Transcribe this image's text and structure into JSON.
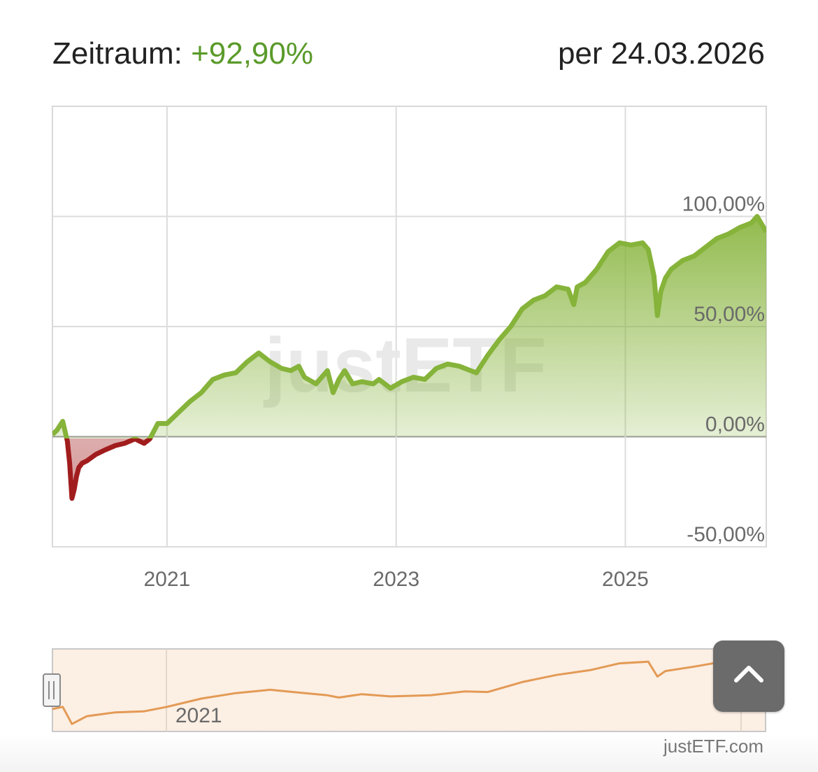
{
  "header": {
    "period_label": "Zeitraum:",
    "period_value": "+92,90%",
    "date_label": "per 24.03.2026"
  },
  "source_label": "justETF.com",
  "watermark_text": "justETF",
  "scroll_top_button": {
    "icon": "chevron-up-icon"
  },
  "colors": {
    "positive_line": "#86b33a",
    "negative_line": "#a11d1d",
    "navigator_line": "#e39a55",
    "navigator_bg": "#fcefe4",
    "grid": "#dcdcdc",
    "zero_line": "#9a9a9a"
  },
  "chart_data": [
    {
      "type": "area",
      "title": "",
      "xlabel": "",
      "ylabel": "",
      "x_unit": "year",
      "xlim": [
        2020.0,
        2026.23
      ],
      "ylim": [
        -50,
        150
      ],
      "y_ticks": [
        -50,
        0,
        50,
        100
      ],
      "y_tick_labels": [
        "-50,00%",
        "0,00%",
        "50,00%",
        "100,00%"
      ],
      "x_ticks": [
        2021,
        2023,
        2025
      ],
      "x_tick_labels": [
        "2021",
        "2023",
        "2025"
      ],
      "grid": true,
      "legend": "none",
      "series": [
        {
          "x": [
            2020.0,
            2020.04,
            2020.09,
            2020.13,
            2020.15,
            2020.17,
            2020.19,
            2020.21,
            2020.23,
            2020.26,
            2020.3,
            2020.38,
            2020.46,
            2020.55,
            2020.63,
            2020.72,
            2020.8,
            2020.85,
            2020.92,
            2021.0,
            2021.1,
            2021.2,
            2021.3,
            2021.4,
            2021.5,
            2021.6,
            2021.7,
            2021.8,
            2021.9,
            2022.0,
            2022.08,
            2022.15,
            2022.2,
            2022.3,
            2022.4,
            2022.45,
            2022.5,
            2022.55,
            2022.62,
            2022.7,
            2022.8,
            2022.85,
            2022.95,
            2023.05,
            2023.15,
            2023.25,
            2023.35,
            2023.45,
            2023.55,
            2023.65,
            2023.7,
            2023.8,
            2023.9,
            2024.0,
            2024.1,
            2024.2,
            2024.3,
            2024.4,
            2024.5,
            2024.55,
            2024.58,
            2024.65,
            2024.75,
            2024.85,
            2024.95,
            2025.05,
            2025.15,
            2025.2,
            2025.25,
            2025.28,
            2025.31,
            2025.35,
            2025.4,
            2025.5,
            2025.6,
            2025.7,
            2025.8,
            2025.9,
            2026.0,
            2026.05,
            2026.1,
            2026.15,
            2026.23
          ],
          "values": [
            1,
            3,
            7,
            -2,
            -12,
            -28,
            -24,
            -18,
            -14,
            -12,
            -11,
            -8,
            -6,
            -4,
            -3,
            -1,
            -3,
            -1,
            6,
            6,
            11,
            16,
            20,
            26,
            28,
            29,
            34,
            38,
            34,
            31,
            30,
            32,
            27,
            24,
            30,
            20,
            26,
            30,
            24,
            25,
            24,
            26,
            22,
            25,
            27,
            26,
            31,
            33,
            32,
            30,
            29,
            37,
            44,
            50,
            58,
            62,
            64,
            68,
            67,
            60,
            68,
            70,
            76,
            84,
            88,
            87,
            88,
            85,
            73,
            55,
            66,
            72,
            76,
            80,
            82,
            86,
            90,
            92,
            95,
            96,
            97,
            100,
            93
          ]
        }
      ]
    },
    {
      "type": "line",
      "title": "",
      "x_ticks": [
        2021
      ],
      "x_tick_labels": [
        "2021"
      ],
      "legend": "none",
      "series": [
        {
          "x": [
            2020.0,
            2020.09,
            2020.17,
            2020.3,
            2020.55,
            2020.8,
            2021.0,
            2021.3,
            2021.6,
            2021.9,
            2022.1,
            2022.4,
            2022.5,
            2022.7,
            2022.95,
            2023.3,
            2023.6,
            2023.8,
            2024.1,
            2024.4,
            2024.7,
            2024.95,
            2025.2,
            2025.28,
            2025.35,
            2025.6,
            2025.85
          ],
          "values": [
            1,
            5,
            -26,
            -12,
            -5,
            -3,
            5,
            20,
            30,
            36,
            32,
            26,
            22,
            28,
            24,
            26,
            33,
            32,
            50,
            63,
            72,
            84,
            87,
            60,
            70,
            78,
            87
          ]
        }
      ]
    }
  ]
}
